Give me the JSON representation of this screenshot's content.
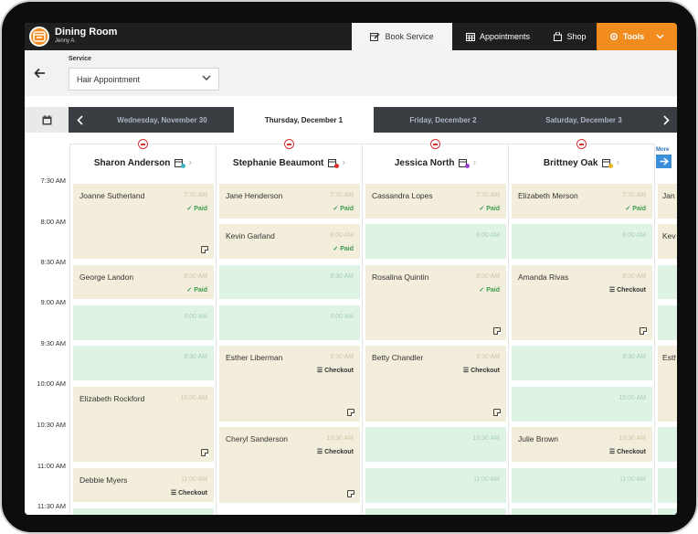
{
  "header": {
    "location_title": "Dining Room",
    "user": "Jenny A.",
    "tabs": [
      {
        "label": "Book Service",
        "icon": "edit-calendar-icon"
      },
      {
        "label": "Appointments",
        "icon": "calendar-grid-icon"
      },
      {
        "label": "Shop",
        "icon": "shopping-bag-icon"
      },
      {
        "label": "Tools",
        "icon": "gear-icon"
      }
    ],
    "colors": {
      "accent": "#f28c1e",
      "bar": "#1f1f1f"
    }
  },
  "service": {
    "label": "Service",
    "selected": "Hair Appointment"
  },
  "dates": [
    {
      "label": "Wednesday, November 30",
      "active": false
    },
    {
      "label": "Thursday, December 1",
      "active": true
    },
    {
      "label": "Friday, December 2",
      "active": false
    },
    {
      "label": "Saturday, December 3",
      "active": false
    }
  ],
  "times": [
    "7:30 AM",
    "8:00 AM",
    "8:30 AM",
    "9:00 AM",
    "9:30 AM",
    "10:00 AM",
    "10:30 AM",
    "11:00 AM",
    "11:30 AM"
  ],
  "more_label": "More",
  "staff": [
    {
      "name": "Sharon Anderson",
      "dot": "#3fb5c4"
    },
    {
      "name": "Stephanie Beaumont",
      "dot": "#d93030"
    },
    {
      "name": "Jessica North",
      "dot": "#9b3fd1"
    },
    {
      "name": "Brittney Oak",
      "dot": "#e8b420"
    }
  ],
  "status_labels": {
    "paid": "Paid",
    "checkout": "Checkout"
  },
  "appointments": {
    "col0": [
      {
        "client": "Joanne Sutherland",
        "time": "7:30 AM",
        "status": "Paid"
      },
      {
        "client": "George Landon",
        "time": "8:30 AM",
        "status": "Paid"
      },
      {
        "client": "",
        "time": "9:00 AM",
        "status": ""
      },
      {
        "client": "",
        "time": "9:30 AM",
        "status": ""
      },
      {
        "client": "Elizabeth Rockford",
        "time": "10:00 AM",
        "status": ""
      },
      {
        "client": "Debbie Myers",
        "time": "11:00 AM",
        "status": "Checkout"
      }
    ],
    "col1": [
      {
        "client": "Jane Henderson",
        "time": "7:30 AM",
        "status": "Paid"
      },
      {
        "client": "Kevin Garland",
        "time": "8:00 AM",
        "status": "Paid"
      },
      {
        "client": "",
        "time": "8:30 AM",
        "status": ""
      },
      {
        "client": "",
        "time": "9:00 AM",
        "status": ""
      },
      {
        "client": "Esther Liberman",
        "time": "9:30 AM",
        "status": "Checkout"
      },
      {
        "client": "Cheryl Sanderson",
        "time": "10:30 AM",
        "status": "Checkout"
      }
    ],
    "col2": [
      {
        "client": "Cassandra Lopes",
        "time": "7:30 AM",
        "status": "Paid"
      },
      {
        "client": "",
        "time": "8:00 AM",
        "status": ""
      },
      {
        "client": "Rosalina Quintin",
        "time": "8:30 AM",
        "status": "Paid"
      },
      {
        "client": "Betty Chandler",
        "time": "9:30 AM",
        "status": "Checkout"
      },
      {
        "client": "",
        "time": "10:30 AM",
        "status": ""
      },
      {
        "client": "",
        "time": "11:00 AM",
        "status": ""
      }
    ],
    "col3": [
      {
        "client": "Elizabeth Merson",
        "time": "7:30 AM",
        "status": "Paid"
      },
      {
        "client": "",
        "time": "8:00 AM",
        "status": ""
      },
      {
        "client": "Amanda Rivas",
        "time": "8:30 AM",
        "status": "Checkout"
      },
      {
        "client": "",
        "time": "9:30 AM",
        "status": ""
      },
      {
        "client": "",
        "time": "10:00 AM",
        "status": ""
      },
      {
        "client": "Julie Brown",
        "time": "10:30 AM",
        "status": "Checkout"
      },
      {
        "client": "",
        "time": "11:00 AM",
        "status": ""
      }
    ],
    "col4": [
      {
        "client": "Jan"
      },
      {
        "client": "Kev"
      },
      {
        "client": "Esth"
      }
    ]
  }
}
